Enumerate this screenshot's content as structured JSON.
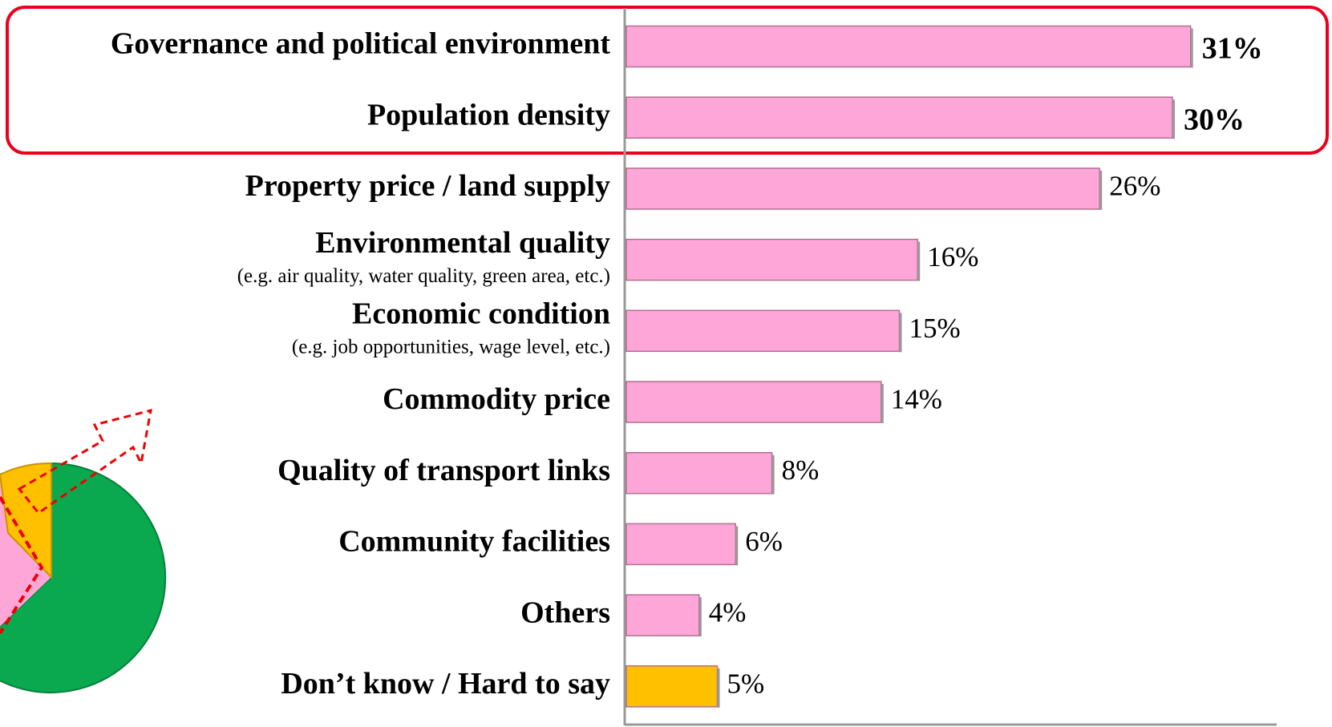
{
  "chart_data": {
    "type": "bar",
    "orientation": "horizontal",
    "categories": [
      "Governance and political environment",
      "Population density",
      "Property price / land supply",
      "Environmental quality",
      "Economic condition",
      "Commodity price",
      "Quality of transport links",
      "Community facilities",
      "Others",
      "Don’t know / Hard to say"
    ],
    "category_notes": {
      "3": "(e.g. air quality, water quality, green area, etc.)",
      "4": "(e.g. job opportunities, wage level, etc.)"
    },
    "values": [
      31,
      30,
      26,
      16,
      15,
      14,
      8,
      6,
      4,
      5
    ],
    "value_labels": [
      "31%",
      "30%",
      "26%",
      "16%",
      "15%",
      "14%",
      "8%",
      "6%",
      "4%",
      "5%"
    ],
    "colors": [
      "#ffa6d9",
      "#ffa6d9",
      "#ffa6d9",
      "#ffa6d9",
      "#ffa6d9",
      "#ffa6d9",
      "#ffa6d9",
      "#ffa6d9",
      "#ffa6d9",
      "#ffc000"
    ],
    "emphasis": [
      true,
      true,
      false,
      false,
      false,
      false,
      false,
      false,
      false,
      false
    ],
    "xlim": [
      0,
      35
    ]
  }
}
